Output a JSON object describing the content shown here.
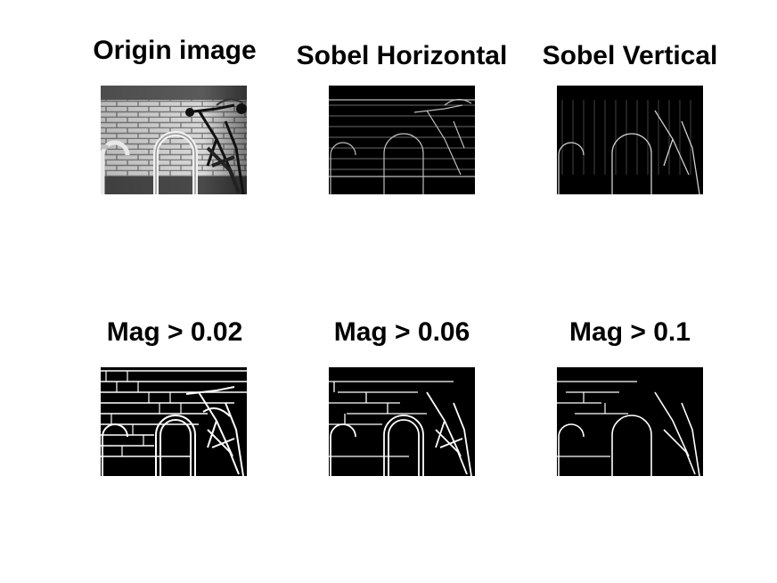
{
  "figure": {
    "panels": [
      {
        "id": "origin",
        "title": "Origin image",
        "kind": "grayscale-photo",
        "subject": "brick-wall-bike-rack"
      },
      {
        "id": "sobel-h",
        "title": "Sobel Horizontal",
        "kind": "edge-response"
      },
      {
        "id": "sobel-v",
        "title": "Sobel Vertical",
        "kind": "edge-response"
      },
      {
        "id": "mag-002",
        "title": "Mag > 0.02",
        "kind": "binary-edge-map",
        "threshold": 0.02
      },
      {
        "id": "mag-006",
        "title": "Mag > 0.06",
        "kind": "binary-edge-map",
        "threshold": 0.06
      },
      {
        "id": "mag-010",
        "title": "Mag > 0.1",
        "kind": "binary-edge-map",
        "threshold": 0.1
      }
    ],
    "colors": {
      "background": "#ffffff",
      "text": "#000000",
      "tile_dark": "#000000",
      "brick_light": "#d8d8d8",
      "brick_mortar": "#8a8a8a"
    }
  }
}
